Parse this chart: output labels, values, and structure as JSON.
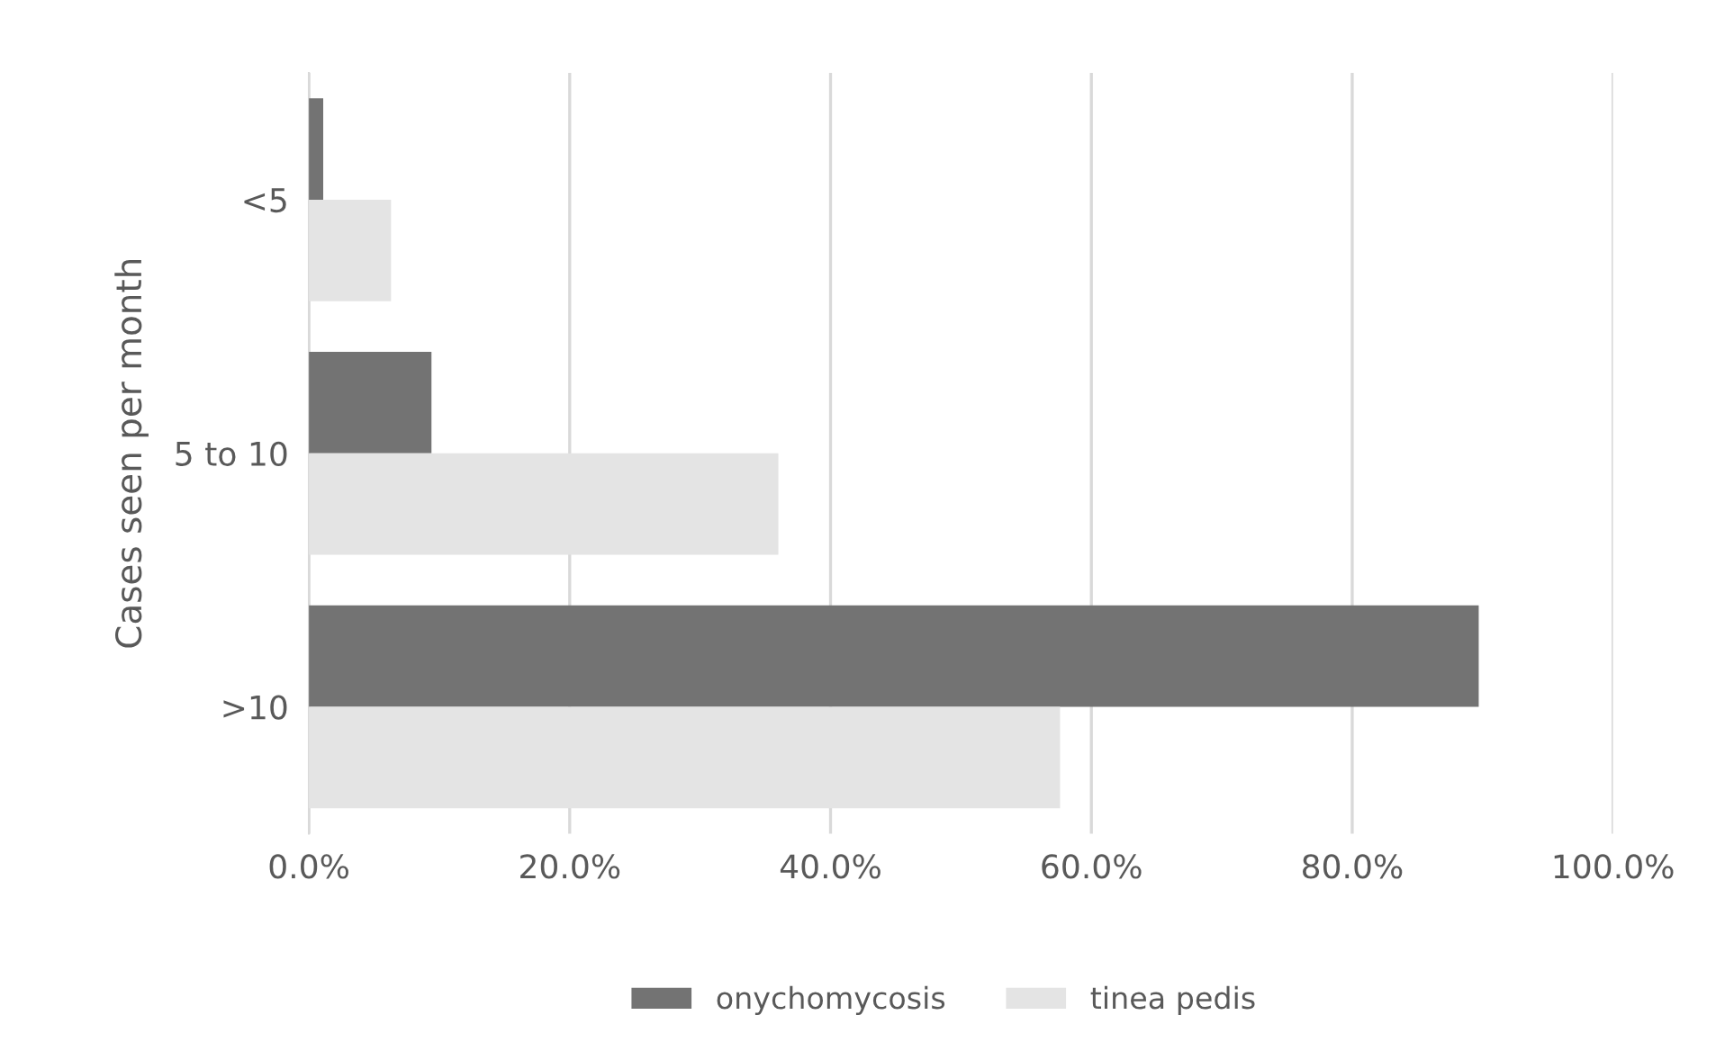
{
  "chart_data": {
    "type": "bar",
    "orientation": "horizontal",
    "ylabel": "Cases seen per month",
    "categories": [
      "<5",
      "5 to 10",
      ">10"
    ],
    "series": [
      {
        "name": "onychomycosis",
        "color": "#737373",
        "values": [
          1.1,
          9.4,
          89.7
        ]
      },
      {
        "name": "tinea pedis",
        "color": "#e4e4e4",
        "values": [
          6.3,
          36.0,
          57.6
        ]
      }
    ],
    "xlim": [
      0,
      100
    ],
    "xticks": [
      {
        "value": 0,
        "label": "0.0%"
      },
      {
        "value": 20,
        "label": "20.0%"
      },
      {
        "value": 40,
        "label": "40.0%"
      },
      {
        "value": 60,
        "label": "60.0%"
      },
      {
        "value": 80,
        "label": "80.0%"
      },
      {
        "value": 100,
        "label": "100.0%"
      }
    ],
    "grid": "x",
    "legend": "bottom"
  }
}
